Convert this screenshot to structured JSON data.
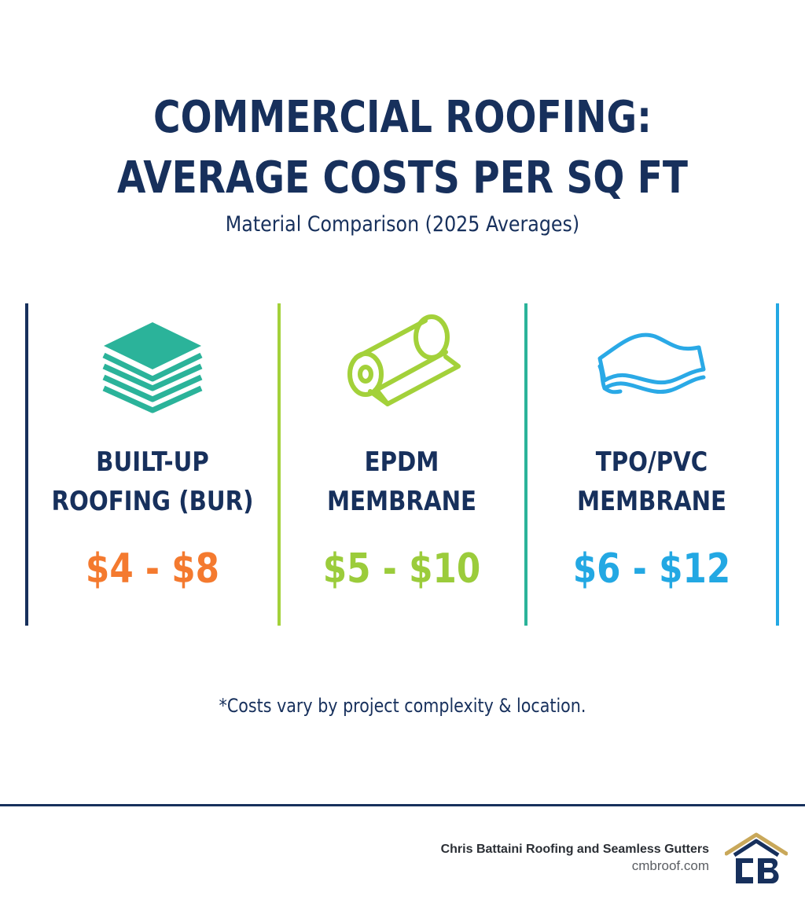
{
  "header": {
    "title_line1": "COMMERCIAL ROOFING:",
    "title_line2": "AVERAGE COSTS PER SQ FT",
    "subtitle": "Material Comparison (2025 Averages)"
  },
  "materials": [
    {
      "name_line1": "BUILT-UP",
      "name_line2": "ROOFING (BUR)",
      "price": "$4 - $8",
      "price_color": "#f47a2f",
      "icon": "layered-stack-icon",
      "icon_color": "#2bb39a"
    },
    {
      "name_line1": "EPDM",
      "name_line2": "MEMBRANE",
      "price": "$5 - $10",
      "price_color": "#9bcc3b",
      "icon": "membrane-roll-icon",
      "icon_color": "#a3d13a"
    },
    {
      "name_line1": "TPO/PVC",
      "name_line2": "MEMBRANE",
      "price": "$6 - $12",
      "price_color": "#23a8e3",
      "icon": "membrane-sheets-icon",
      "icon_color": "#2aa9e6"
    }
  ],
  "dividers": {
    "colors": [
      "#17305c",
      "#a3d13a",
      "#2bb39a",
      "#23a8e3"
    ]
  },
  "footnote": "*Costs vary by project complexity & location.",
  "footer": {
    "company": "Chris Battaini Roofing and Seamless Gutters",
    "website": "cmbroof.com",
    "logo": "cb-house-logo",
    "logo_colors": {
      "primary": "#17305c",
      "accent": "#c9a85a"
    }
  }
}
